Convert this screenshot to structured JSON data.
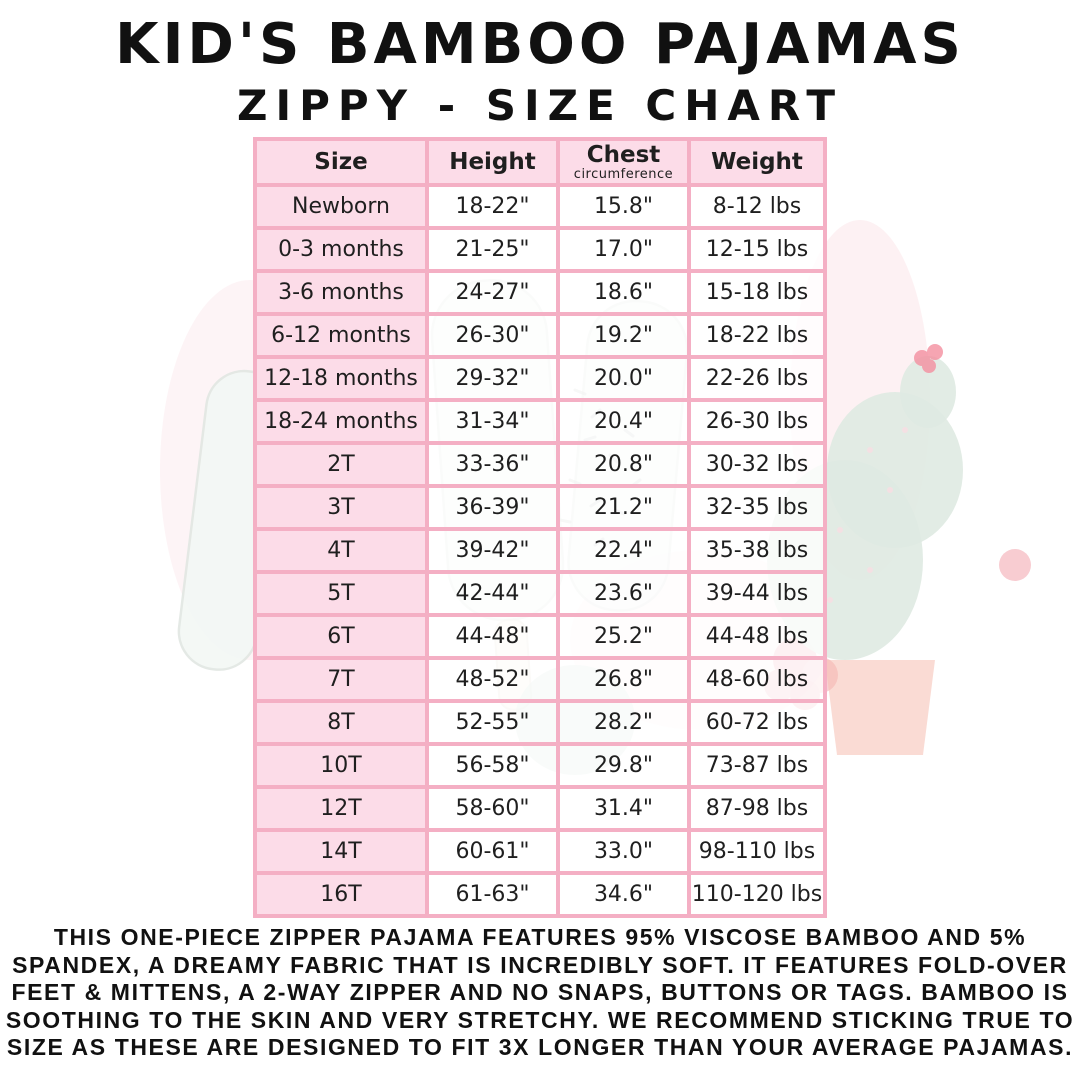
{
  "header": {
    "title": "KID'S BAMBOO PAJAMAS",
    "subtitle": "ZIPPY - SIZE CHART"
  },
  "table": {
    "col_size": "Size",
    "col_height": "Height",
    "col_chest": "Chest",
    "col_chest_sub": "circumference",
    "col_weight": "Weight"
  },
  "chart_data": {
    "type": "table",
    "title": "KID'S BAMBOO PAJAMAS",
    "subtitle": "ZIPPY - SIZE CHART",
    "columns": [
      "Size",
      "Height",
      "Chest circumference",
      "Weight"
    ],
    "rows": [
      [
        "Newborn",
        "18-22\"",
        "15.8\"",
        "8-12 lbs"
      ],
      [
        "0-3 months",
        "21-25\"",
        "17.0\"",
        "12-15 lbs"
      ],
      [
        "3-6 months",
        "24-27\"",
        "18.6\"",
        "15-18 lbs"
      ],
      [
        "6-12 months",
        "26-30\"",
        "19.2\"",
        "18-22 lbs"
      ],
      [
        "12-18 months",
        "29-32\"",
        "20.0\"",
        "22-26 lbs"
      ],
      [
        "18-24 months",
        "31-34\"",
        "20.4\"",
        "26-30 lbs"
      ],
      [
        "2T",
        "33-36\"",
        "20.8\"",
        "30-32 lbs"
      ],
      [
        "3T",
        "36-39\"",
        "21.2\"",
        "32-35 lbs"
      ],
      [
        "4T",
        "39-42\"",
        "22.4\"",
        "35-38 lbs"
      ],
      [
        "5T",
        "42-44\"",
        "23.6\"",
        "39-44 lbs"
      ],
      [
        "6T",
        "44-48\"",
        "25.2\"",
        "44-48 lbs"
      ],
      [
        "7T",
        "48-52\"",
        "26.8\"",
        "48-60 lbs"
      ],
      [
        "8T",
        "52-55\"",
        "28.2\"",
        "60-72 lbs"
      ],
      [
        "10T",
        "56-58\"",
        "29.8\"",
        "73-87 lbs"
      ],
      [
        "12T",
        "58-60\"",
        "31.4\"",
        "87-98 lbs"
      ],
      [
        "14T",
        "60-61\"",
        "33.0\"",
        "98-110 lbs"
      ],
      [
        "16T",
        "61-63\"",
        "34.6\"",
        "110-120 lbs"
      ]
    ]
  },
  "description": {
    "lines": [
      "THIS ONE-PIECE ZIPPER PAJAMA FEATURES 95% VISCOSE BAMBOO AND 5%",
      "SPANDEX, A DREAMY FABRIC THAT IS INCREDIBLY SOFT. IT FEATURES FOLD-OVER",
      "FEET & MITTENS, A 2-WAY ZIPPER AND NO SNAPS, BUTTONS OR TAGS. BAMBOO IS",
      "SOOTHING TO THE SKIN AND VERY STRETCHY. WE RECOMMEND STICKING TRUE TO",
      "SIZE AS THESE ARE DESIGNED TO FIT 3X LONGER THAN YOUR AVERAGE PAJAMAS."
    ]
  },
  "colors": {
    "cell_pink": "#fcdce8",
    "grid_pink": "#f4afc4",
    "text": "#1f1f1f",
    "watermark_green": "#dfeae2",
    "watermark_pink": "#f8ccd4",
    "watermark_salmon": "#f6beb0"
  }
}
